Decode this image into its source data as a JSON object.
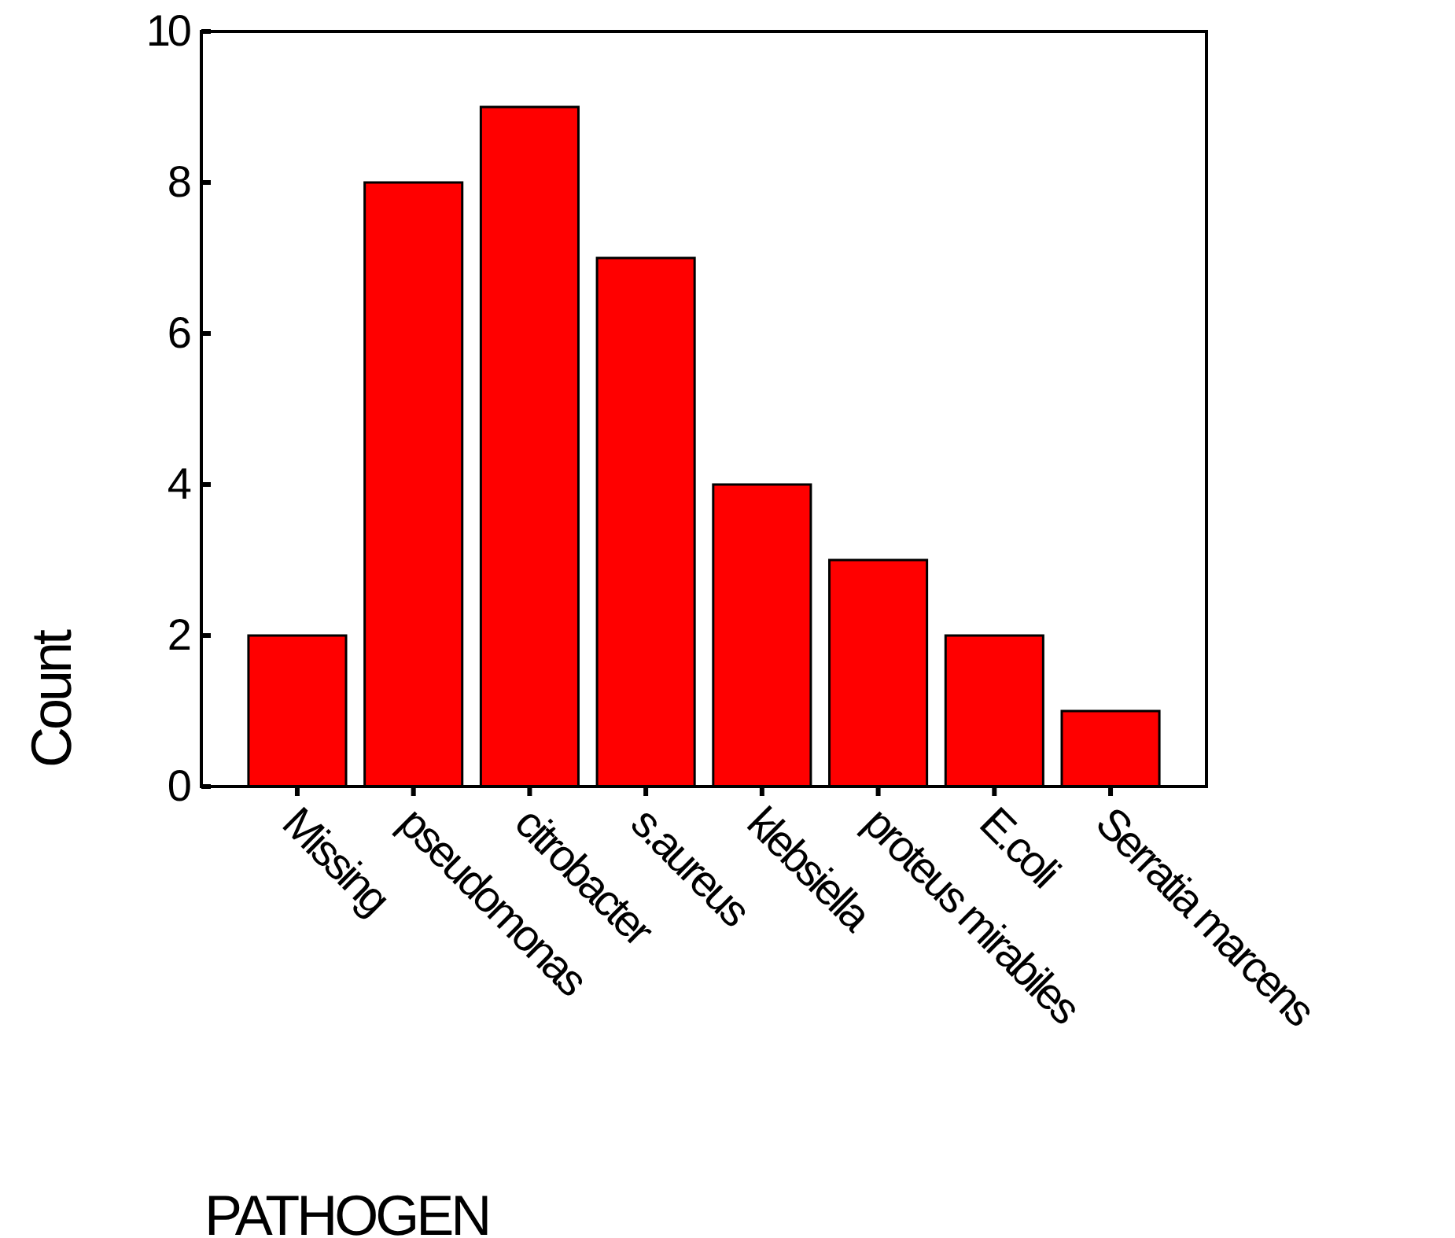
{
  "chart_data": {
    "type": "bar",
    "xlabel": "PATHOGEN",
    "ylabel": "Count",
    "categories": [
      "Missing",
      "pseudomonas",
      "citrobacter",
      "s.aureus",
      "klebsiella",
      "proteus mirabiles",
      "E.coli",
      "Serratia marcens"
    ],
    "values": [
      2,
      8,
      9,
      7,
      4,
      3,
      2,
      1
    ],
    "color": "#ff0000",
    "ylim": [
      0,
      10
    ],
    "yticks": [
      0,
      2,
      4,
      6,
      8,
      10
    ],
    "grid": false
  }
}
